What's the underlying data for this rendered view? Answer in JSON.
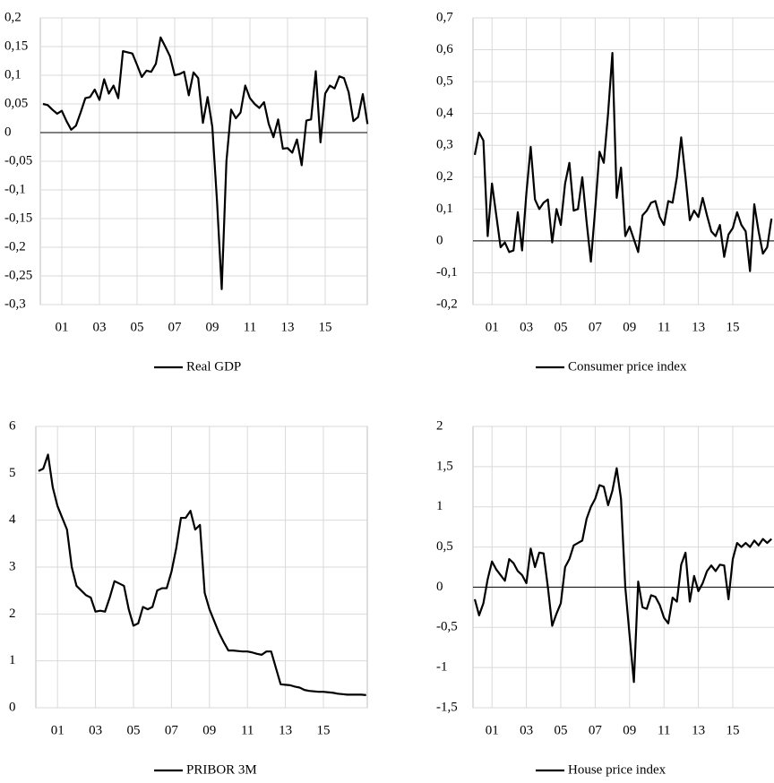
{
  "chart_data": [
    {
      "type": "line",
      "categories": [
        null,
        null,
        null,
        null,
        "01",
        null,
        null,
        null,
        null,
        null,
        null,
        null,
        "03",
        null,
        null,
        null,
        null,
        null,
        null,
        null,
        "05",
        null,
        null,
        null,
        null,
        null,
        null,
        null,
        "07",
        null,
        null,
        null,
        null,
        null,
        null,
        null,
        "09",
        null,
        null,
        null,
        null,
        null,
        null,
        null,
        "11",
        null,
        null,
        null,
        null,
        null,
        null,
        null,
        "13",
        null,
        null,
        null,
        null,
        null,
        null,
        null,
        "15",
        null,
        null,
        null,
        null,
        null,
        null,
        null,
        null,
        null
      ],
      "series": [
        {
          "name": "Real GDP",
          "color": "#000000",
          "values": [
            0.05,
            0.048,
            0.04,
            0.033,
            0.038,
            0.02,
            0.005,
            0.012,
            0.035,
            0.06,
            0.062,
            0.075,
            0.057,
            0.093,
            0.068,
            0.082,
            0.06,
            0.142,
            0.14,
            0.138,
            0.118,
            0.097,
            0.108,
            0.106,
            0.12,
            0.166,
            0.15,
            0.133,
            0.1,
            0.102,
            0.106,
            0.065,
            0.105,
            0.095,
            0.017,
            0.062,
            0.01,
            -0.12,
            -0.273,
            -0.05,
            0.04,
            0.025,
            0.035,
            0.082,
            0.06,
            0.05,
            0.043,
            0.053,
            0.015,
            -0.008,
            0.023,
            -0.028,
            -0.027,
            -0.035,
            -0.012,
            -0.057,
            0.021,
            0.023,
            0.107,
            -0.017,
            0.068,
            0.082,
            0.077,
            0.098,
            0.095,
            0.07,
            0.02,
            0.027,
            0.067,
            0.015
          ]
        }
      ],
      "ylim": [
        -0.3,
        0.2
      ],
      "yticks": [
        {
          "value": -0.3,
          "label": "-0,3"
        },
        {
          "value": -0.25,
          "label": "-0,25"
        },
        {
          "value": -0.2,
          "label": "-0,2"
        },
        {
          "value": -0.15,
          "label": "-0,15"
        },
        {
          "value": -0.1,
          "label": "-0,1"
        },
        {
          "value": -0.05,
          "label": "-0,05"
        },
        0,
        {
          "value": 0.05,
          "label": "0,05"
        },
        {
          "value": 0.1,
          "label": "0,1"
        },
        {
          "value": 0.15,
          "label": "0,15"
        },
        {
          "value": 0.2,
          "label": "0,2"
        }
      ],
      "grid": true
    },
    {
      "type": "line",
      "categories": [
        null,
        null,
        null,
        null,
        "01",
        null,
        null,
        null,
        null,
        null,
        null,
        null,
        "03",
        null,
        null,
        null,
        null,
        null,
        null,
        null,
        "05",
        null,
        null,
        null,
        null,
        null,
        null,
        null,
        "07",
        null,
        null,
        null,
        null,
        null,
        null,
        null,
        "09",
        null,
        null,
        null,
        null,
        null,
        null,
        null,
        "11",
        null,
        null,
        null,
        null,
        null,
        null,
        null,
        "13",
        null,
        null,
        null,
        null,
        null,
        null,
        null,
        "15",
        null,
        null,
        null,
        null,
        null,
        null,
        null,
        null,
        null
      ],
      "series": [
        {
          "name": "Consumer price index",
          "color": "#000000",
          "values": [
            0.27,
            0.34,
            0.315,
            0.015,
            0.18,
            0.08,
            -0.02,
            -0.005,
            -0.035,
            -0.03,
            0.09,
            -0.03,
            0.15,
            0.295,
            0.13,
            0.1,
            0.12,
            0.13,
            -0.005,
            0.1,
            0.05,
            0.18,
            0.245,
            0.095,
            0.1,
            0.2,
            0.06,
            -0.065,
            0.1,
            0.28,
            0.245,
            0.4,
            0.59,
            0.135,
            0.23,
            0.015,
            0.045,
            0.005,
            -0.035,
            0.08,
            0.095,
            0.12,
            0.125,
            0.075,
            0.05,
            0.125,
            0.12,
            0.2,
            0.325,
            0.2,
            0.065,
            0.095,
            0.075,
            0.135,
            0.08,
            0.03,
            0.015,
            0.05,
            -0.05,
            0.02,
            0.04,
            0.09,
            0.05,
            0.03,
            -0.095,
            0.115,
            0.03,
            -0.04,
            -0.02,
            0.07
          ]
        }
      ],
      "ylim": [
        -0.2,
        0.7
      ],
      "yticks": [
        {
          "value": -0.2,
          "label": "-0,2"
        },
        {
          "value": -0.1,
          "label": "-0,1"
        },
        0,
        {
          "value": 0.1,
          "label": "0,1"
        },
        {
          "value": 0.2,
          "label": "0,2"
        },
        {
          "value": 0.3,
          "label": "0,3"
        },
        {
          "value": 0.4,
          "label": "0,4"
        },
        {
          "value": 0.5,
          "label": "0,5"
        },
        {
          "value": 0.6,
          "label": "0,6"
        },
        {
          "value": 0.7,
          "label": "0,7"
        }
      ],
      "grid": true
    },
    {
      "type": "line",
      "categories": [
        null,
        null,
        null,
        null,
        "01",
        null,
        null,
        null,
        null,
        null,
        null,
        null,
        "03",
        null,
        null,
        null,
        null,
        null,
        null,
        null,
        "05",
        null,
        null,
        null,
        null,
        null,
        null,
        null,
        "07",
        null,
        null,
        null,
        null,
        null,
        null,
        null,
        "09",
        null,
        null,
        null,
        null,
        null,
        null,
        null,
        "11",
        null,
        null,
        null,
        null,
        null,
        null,
        null,
        "13",
        null,
        null,
        null,
        null,
        null,
        null,
        null,
        "15",
        null,
        null,
        null,
        null,
        null,
        null,
        null,
        null,
        null
      ],
      "series": [
        {
          "name": "PRIBOR 3M",
          "color": "#000000",
          "values": [
            5.05,
            5.1,
            5.4,
            4.7,
            4.3,
            4.05,
            3.8,
            3.0,
            2.6,
            2.5,
            2.4,
            2.35,
            2.05,
            2.07,
            2.05,
            2.35,
            2.7,
            2.65,
            2.6,
            2.1,
            1.75,
            1.8,
            2.15,
            2.1,
            2.15,
            2.5,
            2.55,
            2.55,
            2.9,
            3.4,
            4.05,
            4.05,
            4.2,
            3.8,
            3.9,
            2.45,
            2.1,
            1.85,
            1.6,
            1.4,
            1.22,
            1.22,
            1.21,
            1.2,
            1.2,
            1.18,
            1.15,
            1.13,
            1.2,
            1.2,
            0.85,
            0.5,
            0.49,
            0.48,
            0.45,
            0.43,
            0.38,
            0.36,
            0.35,
            0.34,
            0.34,
            0.33,
            0.32,
            0.3,
            0.29,
            0.28,
            0.28,
            0.28,
            0.28,
            0.27
          ]
        }
      ],
      "ylim": [
        0,
        6
      ],
      "yticks": [
        0,
        1,
        2,
        3,
        4,
        5,
        6
      ],
      "grid": true
    },
    {
      "type": "line",
      "categories": [
        null,
        null,
        null,
        null,
        "01",
        null,
        null,
        null,
        null,
        null,
        null,
        null,
        "03",
        null,
        null,
        null,
        null,
        null,
        null,
        null,
        "05",
        null,
        null,
        null,
        null,
        null,
        null,
        null,
        "07",
        null,
        null,
        null,
        null,
        null,
        null,
        null,
        "09",
        null,
        null,
        null,
        null,
        null,
        null,
        null,
        "11",
        null,
        null,
        null,
        null,
        null,
        null,
        null,
        "13",
        null,
        null,
        null,
        null,
        null,
        null,
        null,
        "15",
        null,
        null,
        null,
        null,
        null,
        null,
        null,
        null,
        null
      ],
      "series": [
        {
          "name": "House price index",
          "color": "#000000",
          "values": [
            -0.15,
            -0.35,
            -0.2,
            0.1,
            0.32,
            0.22,
            0.15,
            0.08,
            0.35,
            0.3,
            0.2,
            0.15,
            0.05,
            0.48,
            0.25,
            0.43,
            0.42,
            0.0,
            -0.48,
            -0.33,
            -0.2,
            0.25,
            0.35,
            0.52,
            0.55,
            0.58,
            0.85,
            1.0,
            1.1,
            1.27,
            1.25,
            1.02,
            1.2,
            1.48,
            1.1,
            0.0,
            -0.6,
            -1.18,
            0.07,
            -0.25,
            -0.27,
            -0.1,
            -0.12,
            -0.22,
            -0.38,
            -0.45,
            -0.13,
            -0.18,
            0.28,
            0.43,
            -0.18,
            0.14,
            -0.05,
            0.05,
            0.2,
            0.27,
            0.2,
            0.28,
            0.27,
            -0.15,
            0.35,
            0.55,
            0.5,
            0.55,
            0.5,
            0.58,
            0.52,
            0.6,
            0.55,
            0.6
          ]
        }
      ],
      "ylim": [
        -1.5,
        2
      ],
      "yticks": [
        {
          "value": -1.5,
          "label": "-1,5"
        },
        -1,
        {
          "value": -0.5,
          "label": "-0,5"
        },
        0,
        {
          "value": 0.5,
          "label": "0,5"
        },
        1,
        {
          "value": 1.5,
          "label": "1,5"
        },
        2
      ],
      "grid": true
    }
  ]
}
